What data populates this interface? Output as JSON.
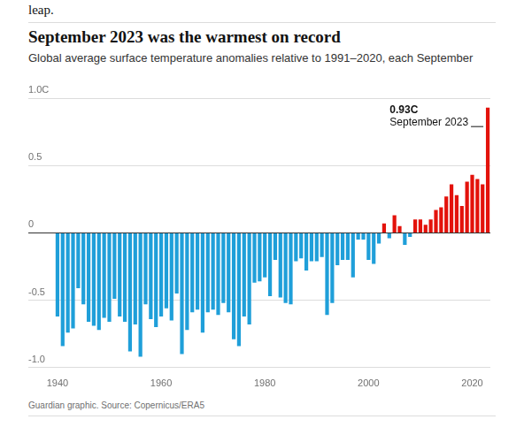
{
  "chart_data": {
    "type": "bar",
    "intro": "leap.",
    "title": "September 2023 was the warmest on record",
    "subtitle": "Global average surface temperature anomalies relative to 1991–2020, each September",
    "source": "Guardian graphic. Source: Copernicus/ERA5",
    "categories": [
      "1940",
      null,
      null,
      null,
      null,
      null,
      null,
      null,
      null,
      null,
      null,
      null,
      null,
      null,
      null,
      null,
      null,
      null,
      null,
      null,
      "1960",
      null,
      null,
      null,
      null,
      null,
      null,
      null,
      null,
      null,
      null,
      null,
      null,
      null,
      null,
      null,
      null,
      null,
      null,
      null,
      "1980",
      null,
      null,
      null,
      null,
      null,
      null,
      null,
      null,
      null,
      null,
      null,
      null,
      null,
      null,
      null,
      null,
      null,
      null,
      null,
      "2000",
      null,
      null,
      null,
      null,
      null,
      null,
      null,
      null,
      null,
      null,
      null,
      null,
      null,
      null,
      null,
      null,
      null,
      null,
      null,
      "2020",
      null,
      null,
      null
    ],
    "values": [
      -0.62,
      -0.84,
      -0.74,
      -0.71,
      -0.41,
      -0.53,
      -0.66,
      -0.69,
      -0.72,
      -0.63,
      -0.66,
      -0.49,
      -0.62,
      -0.66,
      -0.88,
      -0.68,
      -0.92,
      -0.53,
      -0.64,
      -0.7,
      -0.62,
      -0.56,
      -0.65,
      -0.45,
      -0.9,
      -0.72,
      -0.59,
      -0.57,
      -0.74,
      -0.59,
      -0.57,
      -0.61,
      -0.52,
      -0.59,
      -0.79,
      -0.84,
      -0.62,
      -0.68,
      -0.37,
      -0.36,
      -0.33,
      -0.47,
      -0.2,
      -0.48,
      -0.52,
      -0.53,
      -0.21,
      -0.19,
      -0.28,
      -0.21,
      -0.21,
      -0.18,
      -0.61,
      -0.52,
      -0.24,
      -0.2,
      -0.2,
      -0.33,
      -0.05,
      -0.05,
      -0.2,
      -0.23,
      -0.08,
      0.07,
      -0.04,
      0.13,
      0.05,
      -0.09,
      -0.03,
      0.1,
      0.1,
      0.06,
      0.1,
      0.17,
      0.19,
      0.27,
      0.36,
      0.28,
      0.2,
      0.38,
      0.43,
      0.4,
      0.36,
      0.93
    ],
    "colors": [
      "#1f9fd9",
      "#1f9fd9",
      "#1f9fd9",
      "#1f9fd9",
      "#1f9fd9",
      "#1f9fd9",
      "#1f9fd9",
      "#1f9fd9",
      "#1f9fd9",
      "#1f9fd9",
      "#1f9fd9",
      "#1f9fd9",
      "#1f9fd9",
      "#1f9fd9",
      "#1f9fd9",
      "#1f9fd9",
      "#1f9fd9",
      "#1f9fd9",
      "#1f9fd9",
      "#1f9fd9",
      "#1f9fd9",
      "#1f9fd9",
      "#1f9fd9",
      "#1f9fd9",
      "#1f9fd9",
      "#1f9fd9",
      "#1f9fd9",
      "#1f9fd9",
      "#1f9fd9",
      "#1f9fd9",
      "#1f9fd9",
      "#1f9fd9",
      "#1f9fd9",
      "#1f9fd9",
      "#1f9fd9",
      "#1f9fd9",
      "#1f9fd9",
      "#1f9fd9",
      "#1f9fd9",
      "#1f9fd9",
      "#1f9fd9",
      "#1f9fd9",
      "#1f9fd9",
      "#1f9fd9",
      "#1f9fd9",
      "#1f9fd9",
      "#1f9fd9",
      "#1f9fd9",
      "#1f9fd9",
      "#1f9fd9",
      "#1f9fd9",
      "#1f9fd9",
      "#1f9fd9",
      "#1f9fd9",
      "#1f9fd9",
      "#1f9fd9",
      "#1f9fd9",
      "#1f9fd9",
      "#1f9fd9",
      "#1f9fd9",
      "#1f9fd9",
      "#1f9fd9",
      "#1f9fd9",
      "#e3120b",
      "#1f9fd9",
      "#e3120b",
      "#e3120b",
      "#1f9fd9",
      "#1f9fd9",
      "#e3120b",
      "#e3120b",
      "#e3120b",
      "#e3120b",
      "#e3120b",
      "#e3120b",
      "#e3120b",
      "#e3120b",
      "#e3120b",
      "#e3120b",
      "#e3120b",
      "#e3120b",
      "#e3120b",
      "#e3120b",
      "#e3120b"
    ],
    "annotations": [
      {
        "text": "0.93C",
        "label": "September 2023",
        "year": 2023,
        "value": 0.93
      }
    ],
    "ylim": [
      -1,
      1
    ],
    "yticks": [
      {
        "value": 1,
        "label": "1.0C"
      },
      0.5,
      0,
      -0.5,
      {
        "value": -1,
        "label": "-1.0"
      }
    ],
    "grid": true
  }
}
